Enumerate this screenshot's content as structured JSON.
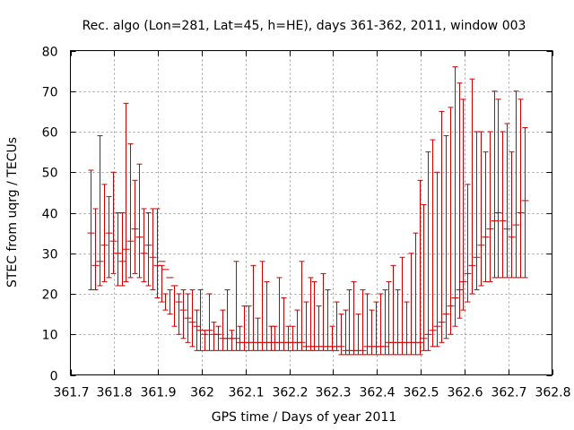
{
  "chart_data": {
    "type": "scatter",
    "style": "errorbars",
    "title": "Rec. algo (Lon=281, Lat=45, h=HE), days 361-362, 2011, window 003",
    "xlabel": "GPS time / Days of year 2011",
    "ylabel": "STEC from uqrg / TECUs",
    "xlim": [
      361.7,
      362.8
    ],
    "ylim": [
      0,
      80
    ],
    "xticks": [
      361.7,
      361.8,
      361.9,
      362,
      362.1,
      362.2,
      362.3,
      362.4,
      362.5,
      362.6,
      362.7,
      362.8
    ],
    "xtick_labels": [
      "361.7",
      "361.8",
      "361.9",
      "362",
      "362.1",
      "362.2",
      "362.3",
      "362.4",
      "362.5",
      "362.6",
      "362.7",
      "362.8"
    ],
    "yticks": [
      0,
      10,
      20,
      30,
      40,
      50,
      60,
      70,
      80
    ],
    "ytick_labels": [
      "0",
      "10",
      "20",
      "30",
      "40",
      "50",
      "60",
      "70",
      "80"
    ],
    "grid": true,
    "color": "#cc0000",
    "series": [
      {
        "x": [
          361.747,
          361.757,
          361.767,
          361.777,
          361.787,
          361.797,
          361.807,
          361.817,
          361.827,
          361.837,
          361.847,
          361.857,
          361.867,
          361.877,
          361.887,
          361.897,
          361.907,
          361.917,
          361.927,
          361.937,
          361.947,
          361.957,
          361.967,
          361.977,
          361.987,
          361.997,
          362.007,
          362.017,
          362.027,
          362.037,
          362.047,
          362.057,
          362.067,
          362.077,
          362.087,
          362.097,
          362.107,
          362.117,
          362.127,
          362.137,
          362.147,
          362.157,
          362.167,
          362.177,
          362.187,
          362.197,
          362.207,
          362.217,
          362.227,
          362.237,
          362.247,
          362.257,
          362.267,
          362.277,
          362.287,
          362.297,
          362.307,
          362.317,
          362.327,
          362.337,
          362.347,
          362.357,
          362.367,
          362.377,
          362.387,
          362.397,
          362.407,
          362.417,
          362.427,
          362.437,
          362.447,
          362.457,
          362.467,
          362.477,
          362.487,
          362.497,
          362.507,
          362.517,
          362.527,
          362.537,
          362.547,
          362.557,
          362.567,
          362.577,
          362.587,
          362.597,
          362.607,
          362.617,
          362.627,
          362.637,
          362.647,
          362.657,
          362.667,
          362.677,
          362.687,
          362.697,
          362.707,
          362.717,
          362.727,
          362.737
        ],
        "y": [
          35,
          27,
          28,
          32,
          35,
          33,
          30,
          28,
          31,
          33,
          36,
          34,
          30,
          32,
          29,
          27,
          28,
          26,
          24,
          22,
          18,
          16,
          14,
          13,
          12,
          11,
          10,
          11,
          10,
          10,
          9,
          9,
          9,
          9,
          8,
          8,
          8,
          8,
          8,
          8,
          8,
          8,
          8,
          8,
          8,
          8,
          8,
          8,
          8,
          7,
          7,
          7,
          7,
          7,
          7,
          7,
          7,
          7,
          6,
          6,
          6,
          6,
          6,
          7,
          7,
          7,
          7,
          7,
          8,
          8,
          8,
          8,
          8,
          8,
          8,
          8,
          9,
          10,
          11,
          12,
          13,
          15,
          17,
          19,
          21,
          23,
          25,
          27,
          29,
          32,
          34,
          36,
          38,
          40,
          38,
          36,
          34,
          37,
          40,
          43
        ],
        "ylow": [
          21,
          21,
          22,
          23,
          24,
          25,
          22,
          22,
          23,
          24,
          25,
          24,
          23,
          22,
          21,
          19,
          18,
          16,
          15,
          12,
          10,
          9,
          8,
          7,
          6,
          6,
          6,
          6,
          6,
          6,
          6,
          6,
          6,
          6,
          6,
          6,
          6,
          6,
          6,
          6,
          6,
          6,
          6,
          6,
          6,
          6,
          6,
          6,
          6,
          6,
          6,
          6,
          6,
          6,
          6,
          6,
          6,
          5,
          5,
          5,
          5,
          5,
          5,
          5,
          5,
          5,
          5,
          5,
          5,
          5,
          5,
          5,
          5,
          5,
          5,
          5,
          6,
          6,
          7,
          7,
          8,
          9,
          10,
          12,
          14,
          16,
          18,
          20,
          21,
          22,
          23,
          23,
          24,
          24,
          24,
          24,
          24,
          24,
          24,
          24
        ],
        "yhigh": [
          50.5,
          41,
          59,
          47,
          44,
          50,
          40,
          40,
          67,
          57,
          48,
          52,
          41,
          40,
          41,
          41,
          27,
          20,
          21,
          22,
          20,
          21,
          20,
          21,
          16,
          21,
          11,
          20,
          13,
          12,
          16,
          21,
          11,
          28,
          12,
          17,
          17,
          27,
          14,
          28,
          23,
          12,
          12,
          24,
          19,
          12,
          12,
          16,
          28,
          18,
          24,
          23,
          17,
          25,
          21,
          12,
          18,
          15,
          16,
          21,
          23,
          15,
          21,
          20,
          16,
          18,
          20,
          21,
          23,
          27,
          21,
          29,
          18,
          30,
          35,
          48,
          42,
          55,
          58,
          50,
          65,
          59,
          66,
          76,
          72,
          68,
          47,
          73,
          60,
          60,
          55,
          60,
          70,
          68,
          60,
          62,
          55,
          70,
          68,
          61
        ]
      }
    ]
  }
}
